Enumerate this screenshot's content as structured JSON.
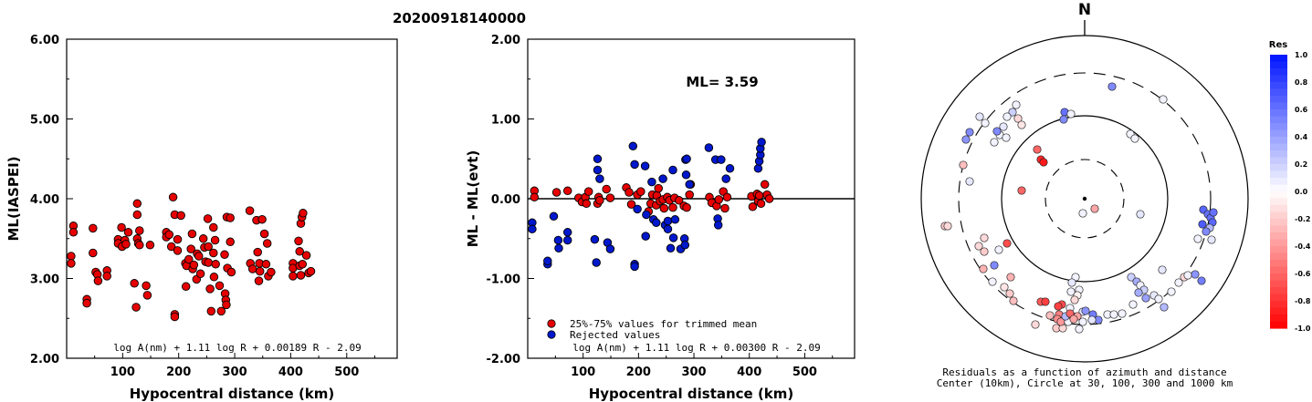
{
  "title": "20200918140000",
  "colors": {
    "trimmed": "#e60000",
    "rejected": "#0018cc",
    "marker_edge": "#000000"
  },
  "chart_data": [
    {
      "type": "scatter",
      "panel": "left",
      "ylabel": "ML(IASPEI)",
      "xlabel": "Hypocentral distance (km)",
      "xlim": [
        0,
        590
      ],
      "ylim": [
        2.0,
        6.0
      ],
      "x_ticks": [
        "100",
        "200",
        "300",
        "400",
        "500"
      ],
      "y_ticks": [
        "2.00",
        "3.00",
        "4.00",
        "5.00",
        "6.00"
      ],
      "formula": "log A(nm) + 1.11 log R + 0.00189 R - 2.09",
      "series": [
        {
          "color": "red",
          "points": [
            [
              8,
              3.28
            ],
            [
              8,
              3.19
            ],
            [
              12,
              3.66
            ],
            [
              12,
              3.58
            ],
            [
              36,
              2.74
            ],
            [
              36,
              2.69
            ],
            [
              47,
              3.63
            ],
            [
              47,
              3.32
            ],
            [
              52,
              3.08
            ],
            [
              55,
              3.05
            ],
            [
              56,
              2.97
            ],
            [
              72,
              3.1
            ],
            [
              72,
              3.03
            ],
            [
              92,
              3.49
            ],
            [
              92,
              3.44
            ],
            [
              98,
              3.64
            ],
            [
              99,
              3.4
            ],
            [
              104,
              3.48
            ],
            [
              106,
              3.43
            ],
            [
              110,
              3.58
            ],
            [
              121,
              2.94
            ],
            [
              124,
              2.64
            ],
            [
              126,
              3.94
            ],
            [
              126,
              3.8
            ],
            [
              126,
              3.5
            ],
            [
              128,
              3.44
            ],
            [
              130,
              3.6
            ],
            [
              130,
              3.42
            ],
            [
              142,
              2.91
            ],
            [
              144,
              2.79
            ],
            [
              149,
              3.42
            ],
            [
              178,
              3.58
            ],
            [
              178,
              3.52
            ],
            [
              183,
              3.55
            ],
            [
              187,
              3.4
            ],
            [
              190,
              4.02
            ],
            [
              193,
              3.8
            ],
            [
              193,
              2.55
            ],
            [
              193,
              2.52
            ],
            [
              198,
              3.49
            ],
            [
              198,
              3.35
            ],
            [
              204,
              3.79
            ],
            [
              212,
              3.19
            ],
            [
              213,
              2.9
            ],
            [
              214,
              3.16
            ],
            [
              218,
              3.24
            ],
            [
              222,
              3.37
            ],
            [
              224,
              3.56
            ],
            [
              225,
              3.12
            ],
            [
              227,
              3.17
            ],
            [
              232,
              2.99
            ],
            [
              233,
              3.31
            ],
            [
              236,
              3.28
            ],
            [
              239,
              3.06
            ],
            [
              244,
              3.5
            ],
            [
              246,
              3.39
            ],
            [
              248,
              3.21
            ],
            [
              252,
              3.75
            ],
            [
              253,
              3.4
            ],
            [
              253,
              3.2
            ],
            [
              256,
              2.87
            ],
            [
              258,
              2.59
            ],
            [
              262,
              3.64
            ],
            [
              262,
              3.32
            ],
            [
              263,
              3.02
            ],
            [
              265,
              3.48
            ],
            [
              266,
              3.18
            ],
            [
              273,
              2.91
            ],
            [
              276,
              2.59
            ],
            [
              282,
              3.3
            ],
            [
              283,
              2.81
            ],
            [
              284,
              2.73
            ],
            [
              285,
              2.67
            ],
            [
              286,
              3.77
            ],
            [
              287,
              3.13
            ],
            [
              292,
              3.76
            ],
            [
              292,
              3.46
            ],
            [
              294,
              3.08
            ],
            [
              327,
              3.85
            ],
            [
              328,
              3.19
            ],
            [
              332,
              3.12
            ],
            [
              339,
              3.73
            ],
            [
              341,
              3.33
            ],
            [
              343,
              2.97
            ],
            [
              344,
              3.19
            ],
            [
              345,
              3.09
            ],
            [
              349,
              3.74
            ],
            [
              353,
              3.56
            ],
            [
              356,
              3.18
            ],
            [
              358,
              3.44
            ],
            [
              360,
              3.03
            ],
            [
              365,
              3.08
            ],
            [
              404,
              3.19
            ],
            [
              404,
              3.13
            ],
            [
              404,
              3.03
            ],
            [
              414,
              3.47
            ],
            [
              416,
              3.34
            ],
            [
              416,
              3.16
            ],
            [
              418,
              3.69
            ],
            [
              418,
              3.04
            ],
            [
              420,
              3.77
            ],
            [
              421,
              3.18
            ],
            [
              422,
              3.82
            ],
            [
              428,
              3.29
            ],
            [
              432,
              3.07
            ],
            [
              436,
              3.09
            ]
          ]
        }
      ]
    },
    {
      "type": "scatter",
      "panel": "middle",
      "ylabel": "ML - ML(evt)",
      "xlabel": "Hypocentral distance (km)",
      "xlim": [
        0,
        590
      ],
      "ylim": [
        -2.0,
        2.0
      ],
      "x_ticks": [
        "100",
        "200",
        "300",
        "400",
        "500"
      ],
      "y_ticks": [
        "-2.00",
        "-1.00",
        "0.00",
        "1.00",
        "2.00"
      ],
      "hline": 0.0,
      "annotation": "ML= 3.59",
      "formula": "log A(nm) + 1.11 log R + 0.00300 R - 2.09",
      "series": [
        {
          "name": "25%-75% values for trimmed mean",
          "color": "red",
          "points": [
            [
              12,
              0.1
            ],
            [
              12,
              0.02
            ],
            [
              52,
              0.08
            ],
            [
              72,
              0.1
            ],
            [
              92,
              0.01
            ],
            [
              98,
              -0.04
            ],
            [
              104,
              0.02
            ],
            [
              106,
              -0.06
            ],
            [
              110,
              0.09
            ],
            [
              126,
              -0.06
            ],
            [
              128,
              0.02
            ],
            [
              130,
              -0.02
            ],
            [
              142,
              0.12
            ],
            [
              149,
              0.01
            ],
            [
              178,
              0.14
            ],
            [
              183,
              0.08
            ],
            [
              187,
              -0.07
            ],
            [
              198,
              0.05
            ],
            [
              204,
              0.09
            ],
            [
              218,
              -0.16
            ],
            [
              222,
              -0.06
            ],
            [
              225,
              0.05
            ],
            [
              232,
              -0.08
            ],
            [
              233,
              0.04
            ],
            [
              236,
              0.13
            ],
            [
              239,
              -0.03
            ],
            [
              244,
              -0.01
            ],
            [
              246,
              -0.12
            ],
            [
              252,
              0.02
            ],
            [
              256,
              -0.02
            ],
            [
              262,
              -0.11
            ],
            [
              265,
              0.01
            ],
            [
              273,
              -0.02
            ],
            [
              282,
              -0.09
            ],
            [
              287,
              -0.11
            ],
            [
              292,
              0.05
            ],
            [
              294,
              0.18
            ],
            [
              328,
              0.02
            ],
            [
              332,
              -0.05
            ],
            [
              341,
              -0.09
            ],
            [
              345,
              -0.01
            ],
            [
              353,
              0.09
            ],
            [
              356,
              -0.12
            ],
            [
              360,
              0.02
            ],
            [
              404,
              0.03
            ],
            [
              406,
              -0.1
            ],
            [
              414,
              0.06
            ],
            [
              416,
              -0.03
            ],
            [
              418,
              0.04
            ],
            [
              421,
              -0.06
            ],
            [
              428,
              0.18
            ],
            [
              432,
              0.05
            ],
            [
              436,
              0.0
            ]
          ]
        },
        {
          "name": "Rejected values",
          "color": "blue",
          "points": [
            [
              8,
              -0.3
            ],
            [
              8,
              -0.38
            ],
            [
              36,
              -0.82
            ],
            [
              36,
              -0.78
            ],
            [
              47,
              -0.22
            ],
            [
              55,
              -0.52
            ],
            [
              56,
              -0.62
            ],
            [
              72,
              -0.42
            ],
            [
              72,
              -0.52
            ],
            [
              121,
              -0.51
            ],
            [
              124,
              -0.8
            ],
            [
              126,
              0.5
            ],
            [
              126,
              0.36
            ],
            [
              130,
              0.25
            ],
            [
              144,
              -0.55
            ],
            [
              149,
              -0.63
            ],
            [
              190,
              0.66
            ],
            [
              193,
              0.43
            ],
            [
              193,
              -0.82
            ],
            [
              193,
              -0.85
            ],
            [
              198,
              -0.13
            ],
            [
              212,
              0.41
            ],
            [
              213,
              -0.47
            ],
            [
              214,
              -0.2
            ],
            [
              224,
              0.21
            ],
            [
              227,
              -0.26
            ],
            [
              232,
              -0.3
            ],
            [
              244,
              0.25
            ],
            [
              248,
              -0.33
            ],
            [
              253,
              -0.28
            ],
            [
              253,
              -0.38
            ],
            [
              258,
              -0.62
            ],
            [
              262,
              0.36
            ],
            [
              263,
              -0.49
            ],
            [
              266,
              -0.26
            ],
            [
              276,
              -0.63
            ],
            [
              283,
              -0.5
            ],
            [
              284,
              -0.58
            ],
            [
              285,
              0.49
            ],
            [
              286,
              0.3
            ],
            [
              287,
              0.5
            ],
            [
              292,
              0.18
            ],
            [
              327,
              0.64
            ],
            [
              339,
              0.49
            ],
            [
              343,
              -0.25
            ],
            [
              344,
              -0.33
            ],
            [
              349,
              0.49
            ],
            [
              358,
              0.25
            ],
            [
              365,
              0.38
            ],
            [
              416,
              0.38
            ],
            [
              418,
              0.47
            ],
            [
              420,
              0.55
            ],
            [
              420,
              0.63
            ],
            [
              422,
              0.71
            ]
          ]
        }
      ]
    },
    {
      "type": "scatter",
      "panel": "polar",
      "north_label": "N",
      "caption_line1": "Residuals as a function of azimuth and distance",
      "caption_line2": "Center (10km), Circle at 30, 100, 300 and 1000 km",
      "colorbar_title": "Res",
      "colorbar_ticks": [
        "1.0",
        "0.8",
        "0.6",
        "0.4",
        "0.2",
        "0.0",
        "-0.2",
        "-0.4",
        "-0.6",
        "-0.8",
        "-1.0"
      ],
      "colorbar_range": [
        -1.0,
        1.0
      ]
    }
  ]
}
